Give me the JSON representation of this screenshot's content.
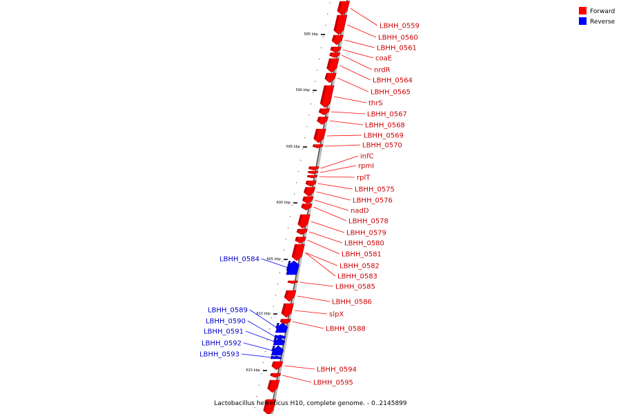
{
  "caption": "Lactobacillus helveticus H10, complete genome. - 0..2145899",
  "legend": {
    "forward": {
      "label": "Forward",
      "color": "#ff0000"
    },
    "reverse": {
      "label": "Reverse",
      "color": "#0000ff"
    }
  },
  "ticks": [
    "585 kbp",
    "590 kbp",
    "595 kbp",
    "600 kbp",
    "605 kbp",
    "610 kbp",
    "615 kbp"
  ],
  "forward_genes": [
    "LBHH_0559",
    "LBHH_0560",
    "LBHH_0561",
    "coaE",
    "nrdR",
    "LBHH_0564",
    "LBHH_0565",
    "thrS",
    "LBHH_0567",
    "LBHH_0568",
    "LBHH_0569",
    "LBHH_0570",
    "infC",
    "rpmI",
    "rplT",
    "LBHH_0575",
    "LBHH_0576",
    "nadD",
    "LBHH_0578",
    "LBHH_0579",
    "LBHH_0580",
    "LBHH_0581",
    "LBHH_0582",
    "LBHH_0583",
    "LBHH_0585",
    "LBHH_0586",
    "slpX",
    "LBHH_0588",
    "LBHH_0594",
    "LBHH_0595"
  ],
  "reverse_genes": [
    "LBHH_0584",
    "LBHH_0589",
    "LBHH_0590",
    "LBHH_0591",
    "LBHH_0592",
    "LBHH_0593"
  ]
}
